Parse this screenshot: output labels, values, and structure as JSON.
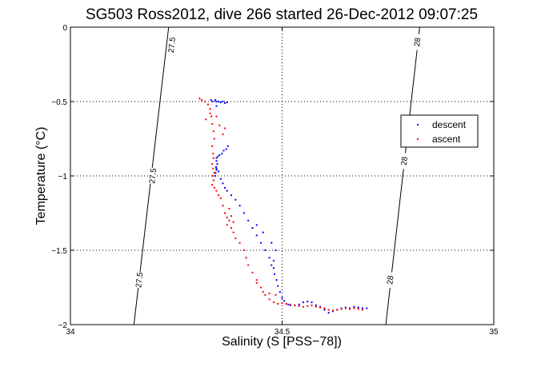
{
  "chart_data": {
    "type": "scatter",
    "title": "SG503 Ross2012, dive 266 started 26-Dec-2012 09:07:25",
    "xlabel": "Salinity (S [PSS−78])",
    "ylabel": "Temperature (°C)",
    "xlim": [
      34,
      35
    ],
    "ylim": [
      -2,
      0
    ],
    "x_ticks": [
      34,
      34.5,
      35
    ],
    "x_tick_labels": [
      "34",
      "34.5",
      "35"
    ],
    "y_ticks": [
      0,
      -0.5,
      -1,
      -1.5,
      -2
    ],
    "y_tick_labels": [
      "0",
      "−0.5",
      "−1",
      "−1.5",
      "−2"
    ],
    "grid": true,
    "legend_position": "right",
    "density_contours": [
      {
        "sigma": 27.5,
        "points": [
          [
            34.232,
            0
          ],
          [
            34.15,
            -2
          ]
        ],
        "labels": [
          {
            "text": "27.5",
            "x": 34.24,
            "y": -0.12
          },
          {
            "text": "27.5",
            "x": 34.195,
            "y": -1.0
          },
          {
            "text": "27.5",
            "x": 34.163,
            "y": -1.7
          }
        ]
      },
      {
        "sigma": 28,
        "points": [
          [
            34.825,
            0
          ],
          [
            34.745,
            -2
          ]
        ],
        "labels": [
          {
            "text": "28",
            "x": 34.82,
            "y": -0.1
          },
          {
            "text": "28",
            "x": 34.789,
            "y": -0.9
          },
          {
            "text": "28",
            "x": 34.756,
            "y": -1.7
          }
        ]
      }
    ],
    "series": [
      {
        "name": "descent",
        "color": "#0000ff",
        "points": [
          [
            34.332,
            -0.49
          ],
          [
            34.336,
            -0.5
          ],
          [
            34.342,
            -0.49
          ],
          [
            34.345,
            -0.5
          ],
          [
            34.35,
            -0.5
          ],
          [
            34.355,
            -0.505
          ],
          [
            34.345,
            -0.53
          ],
          [
            34.36,
            -0.5
          ],
          [
            34.365,
            -0.51
          ],
          [
            34.37,
            -0.505
          ],
          [
            34.372,
            -0.8
          ],
          [
            34.368,
            -0.82
          ],
          [
            34.362,
            -0.83
          ],
          [
            34.358,
            -0.85
          ],
          [
            34.352,
            -0.86
          ],
          [
            34.348,
            -0.87
          ],
          [
            34.345,
            -0.88
          ],
          [
            34.345,
            -0.9
          ],
          [
            34.347,
            -0.92
          ],
          [
            34.344,
            -0.94
          ],
          [
            34.345,
            -0.96
          ],
          [
            34.343,
            -0.98
          ],
          [
            34.342,
            -1.0
          ],
          [
            34.345,
            -0.95
          ],
          [
            34.35,
            -0.97
          ],
          [
            34.355,
            -1.02
          ],
          [
            34.36,
            -1.05
          ],
          [
            34.365,
            -1.08
          ],
          [
            34.37,
            -1.1
          ],
          [
            34.38,
            -1.13
          ],
          [
            34.39,
            -1.16
          ],
          [
            34.4,
            -1.2
          ],
          [
            34.41,
            -1.25
          ],
          [
            34.42,
            -1.3
          ],
          [
            34.43,
            -1.35
          ],
          [
            34.44,
            -1.4
          ],
          [
            34.45,
            -1.45
          ],
          [
            34.46,
            -1.5
          ],
          [
            34.47,
            -1.55
          ],
          [
            34.475,
            -1.6
          ],
          [
            34.48,
            -1.62
          ],
          [
            34.482,
            -1.66
          ],
          [
            34.487,
            -1.7
          ],
          [
            34.49,
            -1.74
          ],
          [
            34.495,
            -1.78
          ],
          [
            34.5,
            -1.82
          ],
          [
            34.505,
            -1.84
          ],
          [
            34.51,
            -1.86
          ],
          [
            34.515,
            -1.865
          ],
          [
            34.52,
            -1.87
          ],
          [
            34.53,
            -1.87
          ],
          [
            34.54,
            -1.865
          ],
          [
            34.55,
            -1.85
          ],
          [
            34.56,
            -1.845
          ],
          [
            34.57,
            -1.85
          ],
          [
            34.58,
            -1.87
          ],
          [
            34.59,
            -1.88
          ],
          [
            34.6,
            -1.9
          ],
          [
            34.61,
            -1.92
          ],
          [
            34.62,
            -1.91
          ],
          [
            34.63,
            -1.9
          ],
          [
            34.64,
            -1.89
          ],
          [
            34.65,
            -1.885
          ],
          [
            34.66,
            -1.89
          ],
          [
            34.67,
            -1.88
          ],
          [
            34.68,
            -1.885
          ],
          [
            34.69,
            -1.89
          ],
          [
            34.7,
            -1.89
          ],
          [
            34.48,
            -1.57
          ],
          [
            34.485,
            -1.5
          ],
          [
            34.475,
            -1.45
          ],
          [
            34.455,
            -1.38
          ],
          [
            34.44,
            -1.33
          ]
        ]
      },
      {
        "name": "ascent",
        "color": "#ff0000",
        "points": [
          [
            34.305,
            -0.48
          ],
          [
            34.31,
            -0.49
          ],
          [
            34.318,
            -0.5
          ],
          [
            34.325,
            -0.52
          ],
          [
            34.33,
            -0.55
          ],
          [
            34.333,
            -0.6
          ],
          [
            34.335,
            -0.65
          ],
          [
            34.338,
            -0.7
          ],
          [
            34.34,
            -0.75
          ],
          [
            34.335,
            -0.8
          ],
          [
            34.337,
            -0.85
          ],
          [
            34.338,
            -0.88
          ],
          [
            34.335,
            -0.92
          ],
          [
            34.337,
            -0.95
          ],
          [
            34.34,
            -0.98
          ],
          [
            34.336,
            -1.0
          ],
          [
            34.338,
            -1.03
          ],
          [
            34.335,
            -1.06
          ],
          [
            34.34,
            -1.08
          ],
          [
            34.345,
            -1.1
          ],
          [
            34.35,
            -1.13
          ],
          [
            34.355,
            -1.15
          ],
          [
            34.36,
            -1.2
          ],
          [
            34.365,
            -1.25
          ],
          [
            34.37,
            -1.28
          ],
          [
            34.375,
            -1.3
          ],
          [
            34.38,
            -1.35
          ],
          [
            34.385,
            -1.38
          ],
          [
            34.39,
            -1.42
          ],
          [
            34.4,
            -1.45
          ],
          [
            34.41,
            -1.5
          ],
          [
            34.415,
            -1.55
          ],
          [
            34.42,
            -1.6
          ],
          [
            34.43,
            -1.65
          ],
          [
            34.44,
            -1.7
          ],
          [
            34.45,
            -1.75
          ],
          [
            34.46,
            -1.8
          ],
          [
            34.47,
            -1.83
          ],
          [
            34.48,
            -1.85
          ],
          [
            34.49,
            -1.86
          ],
          [
            34.5,
            -1.855
          ],
          [
            34.51,
            -1.86
          ],
          [
            34.52,
            -1.865
          ],
          [
            34.53,
            -1.87
          ],
          [
            34.54,
            -1.875
          ],
          [
            34.55,
            -1.88
          ],
          [
            34.56,
            -1.875
          ],
          [
            34.57,
            -1.87
          ],
          [
            34.58,
            -1.88
          ],
          [
            34.59,
            -1.885
          ],
          [
            34.6,
            -1.89
          ],
          [
            34.61,
            -1.9
          ],
          [
            34.62,
            -1.905
          ],
          [
            34.63,
            -1.9
          ],
          [
            34.64,
            -1.895
          ],
          [
            34.65,
            -1.89
          ],
          [
            34.66,
            -1.895
          ],
          [
            34.67,
            -1.89
          ],
          [
            34.68,
            -1.895
          ],
          [
            34.69,
            -1.9
          ],
          [
            34.345,
            -0.6
          ],
          [
            34.32,
            -0.62
          ],
          [
            34.33,
            -0.58
          ],
          [
            34.36,
            -0.72
          ],
          [
            34.365,
            -0.68
          ],
          [
            34.352,
            -0.66
          ],
          [
            34.37,
            -1.33
          ],
          [
            34.38,
            -1.27
          ],
          [
            34.385,
            -1.31
          ],
          [
            34.375,
            -1.22
          ],
          [
            34.44,
            -1.72
          ],
          [
            34.455,
            -1.78
          ],
          [
            34.47,
            -1.79
          ],
          [
            34.485,
            -1.8
          ]
        ]
      }
    ]
  }
}
